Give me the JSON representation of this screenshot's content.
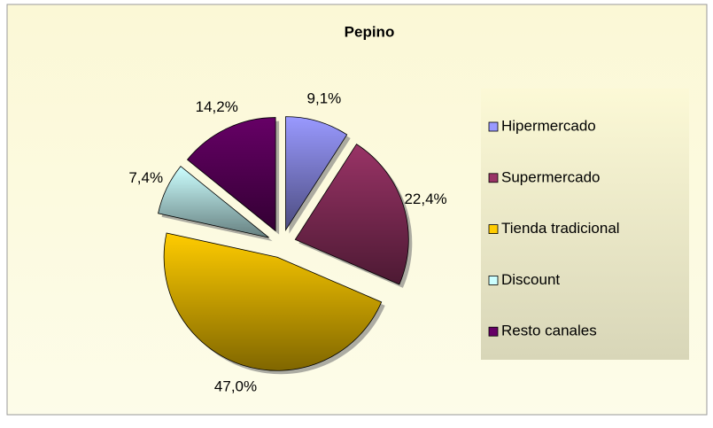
{
  "chart_data": {
    "type": "pie",
    "title": "Pepino",
    "categories": [
      "Hipermercado",
      "Supermercado",
      "Tienda tradicional",
      "Discount",
      "Resto canales"
    ],
    "values": [
      9.1,
      22.4,
      47.0,
      7.4,
      14.2
    ],
    "value_labels": [
      "9,1%",
      "22,4%",
      "47,0%",
      "7,4%",
      "14,2%"
    ],
    "colors": [
      "#9999ff",
      "#993366",
      "#ffcc00",
      "#ccffff",
      "#660066"
    ],
    "legend": "right"
  }
}
